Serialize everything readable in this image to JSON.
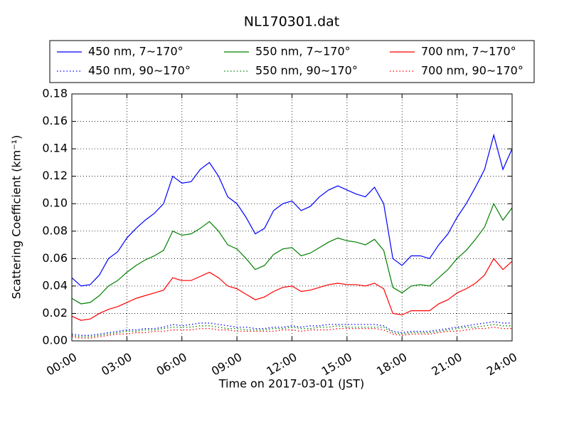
{
  "chart_data": {
    "type": "line",
    "title": "NL170301.dat",
    "x_label": "Time on 2017-03-01 (JST)",
    "y_label": "Scattering Coefficient (km⁻¹)",
    "x": [
      0,
      0.5,
      1,
      1.5,
      2,
      2.5,
      3,
      3.5,
      4,
      4.5,
      5,
      5.5,
      6,
      6.5,
      7,
      7.5,
      8,
      8.5,
      9,
      9.5,
      10,
      10.5,
      11,
      11.5,
      12,
      12.5,
      13,
      13.5,
      14,
      14.5,
      15,
      15.5,
      16,
      16.5,
      17,
      17.5,
      18,
      18.5,
      19,
      19.5,
      20,
      20.5,
      21,
      21.5,
      22,
      22.5,
      23,
      23.5,
      24
    ],
    "xlim": [
      0,
      24
    ],
    "xticks": [
      {
        "value": 0,
        "label": "00:00"
      },
      {
        "value": 3,
        "label": "03:00"
      },
      {
        "value": 6,
        "label": "06:00"
      },
      {
        "value": 9,
        "label": "09:00"
      },
      {
        "value": 12,
        "label": "12:00"
      },
      {
        "value": 15,
        "label": "15:00"
      },
      {
        "value": 18,
        "label": "18:00"
      },
      {
        "value": 21,
        "label": "21:00"
      },
      {
        "value": 24,
        "label": "24:00"
      }
    ],
    "ylim": [
      0,
      0.18
    ],
    "yticks": [
      {
        "value": 0,
        "label": "0.00"
      },
      {
        "value": 0.02,
        "label": "0.02"
      },
      {
        "value": 0.04,
        "label": "0.04"
      },
      {
        "value": 0.06,
        "label": "0.06"
      },
      {
        "value": 0.08,
        "label": "0.08"
      },
      {
        "value": 0.1,
        "label": "0.10"
      },
      {
        "value": 0.12,
        "label": "0.12"
      },
      {
        "value": 0.14,
        "label": "0.14"
      },
      {
        "value": 0.16,
        "label": "0.16"
      },
      {
        "value": 0.18,
        "label": "0.18"
      }
    ],
    "grid": true,
    "legend_position": "top",
    "series": [
      {
        "name": "450 nm, 7∼170°",
        "color": "#0000ff",
        "dash": "solid",
        "values": [
          0.046,
          0.04,
          0.041,
          0.048,
          0.06,
          0.065,
          0.075,
          0.082,
          0.088,
          0.093,
          0.1,
          0.12,
          0.115,
          0.116,
          0.125,
          0.13,
          0.12,
          0.105,
          0.1,
          0.09,
          0.078,
          0.082,
          0.095,
          0.1,
          0.102,
          0.095,
          0.098,
          0.105,
          0.11,
          0.113,
          0.11,
          0.107,
          0.105,
          0.112,
          0.1,
          0.06,
          0.055,
          0.062,
          0.062,
          0.06,
          0.07,
          0.078,
          0.09,
          0.1,
          0.112,
          0.125,
          0.15,
          0.125,
          0.14
        ]
      },
      {
        "name": "550 nm, 7∼170°",
        "color": "#008000",
        "dash": "solid",
        "values": [
          0.031,
          0.027,
          0.028,
          0.033,
          0.04,
          0.044,
          0.05,
          0.055,
          0.059,
          0.062,
          0.066,
          0.08,
          0.077,
          0.078,
          0.082,
          0.087,
          0.08,
          0.07,
          0.067,
          0.06,
          0.052,
          0.055,
          0.063,
          0.067,
          0.068,
          0.062,
          0.064,
          0.068,
          0.072,
          0.075,
          0.073,
          0.072,
          0.07,
          0.074,
          0.066,
          0.039,
          0.035,
          0.04,
          0.041,
          0.04,
          0.046,
          0.052,
          0.06,
          0.066,
          0.074,
          0.083,
          0.1,
          0.088,
          0.097
        ]
      },
      {
        "name": "700 nm, 7∼170°",
        "color": "#ff0000",
        "dash": "solid",
        "values": [
          0.018,
          0.015,
          0.016,
          0.02,
          0.023,
          0.025,
          0.028,
          0.031,
          0.033,
          0.035,
          0.037,
          0.046,
          0.044,
          0.044,
          0.047,
          0.05,
          0.046,
          0.04,
          0.038,
          0.034,
          0.03,
          0.032,
          0.036,
          0.039,
          0.04,
          0.036,
          0.037,
          0.039,
          0.041,
          0.042,
          0.041,
          0.041,
          0.04,
          0.042,
          0.038,
          0.02,
          0.019,
          0.022,
          0.022,
          0.022,
          0.027,
          0.03,
          0.035,
          0.038,
          0.042,
          0.048,
          0.06,
          0.052,
          0.058
        ]
      },
      {
        "name": "450 nm, 90∼170°",
        "color": "#0000ff",
        "dash": "dotted",
        "values": [
          0.005,
          0.004,
          0.004,
          0.005,
          0.006,
          0.007,
          0.008,
          0.008,
          0.009,
          0.009,
          0.01,
          0.012,
          0.011,
          0.012,
          0.013,
          0.013,
          0.012,
          0.011,
          0.01,
          0.01,
          0.009,
          0.009,
          0.01,
          0.01,
          0.011,
          0.01,
          0.011,
          0.011,
          0.012,
          0.012,
          0.012,
          0.012,
          0.012,
          0.012,
          0.011,
          0.007,
          0.006,
          0.007,
          0.007,
          0.007,
          0.008,
          0.009,
          0.01,
          0.011,
          0.012,
          0.013,
          0.014,
          0.013,
          0.013
        ]
      },
      {
        "name": "550 nm, 90∼170°",
        "color": "#008000",
        "dash": "dotted",
        "values": [
          0.004,
          0.003,
          0.003,
          0.004,
          0.005,
          0.006,
          0.007,
          0.007,
          0.008,
          0.008,
          0.009,
          0.01,
          0.01,
          0.01,
          0.011,
          0.011,
          0.01,
          0.009,
          0.009,
          0.008,
          0.008,
          0.008,
          0.009,
          0.009,
          0.01,
          0.009,
          0.009,
          0.01,
          0.01,
          0.011,
          0.01,
          0.01,
          0.01,
          0.01,
          0.01,
          0.006,
          0.005,
          0.006,
          0.006,
          0.006,
          0.007,
          0.008,
          0.009,
          0.01,
          0.01,
          0.011,
          0.012,
          0.011,
          0.011
        ]
      },
      {
        "name": "700 nm, 90∼170°",
        "color": "#ff0000",
        "dash": "dotted",
        "values": [
          0.003,
          0.002,
          0.002,
          0.003,
          0.004,
          0.005,
          0.005,
          0.006,
          0.006,
          0.007,
          0.007,
          0.008,
          0.008,
          0.008,
          0.009,
          0.009,
          0.008,
          0.008,
          0.007,
          0.007,
          0.007,
          0.007,
          0.007,
          0.008,
          0.008,
          0.007,
          0.008,
          0.008,
          0.008,
          0.009,
          0.009,
          0.009,
          0.009,
          0.009,
          0.008,
          0.005,
          0.004,
          0.005,
          0.005,
          0.005,
          0.006,
          0.007,
          0.007,
          0.008,
          0.009,
          0.009,
          0.01,
          0.009,
          0.009
        ]
      }
    ]
  }
}
